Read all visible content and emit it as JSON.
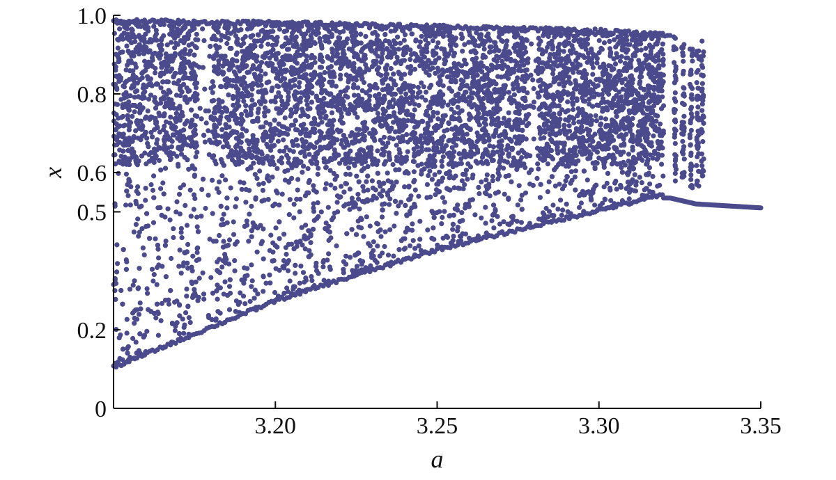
{
  "chart_data": {
    "type": "scatter",
    "title": "",
    "xlabel": "a",
    "ylabel": "x",
    "xlim": [
      3.15,
      3.35
    ],
    "ylim": [
      0,
      1.0
    ],
    "x_ticks": [
      {
        "value": 3.2,
        "label": "3.20"
      },
      {
        "value": 3.25,
        "label": "3.25"
      },
      {
        "value": 3.3,
        "label": "3.30"
      },
      {
        "value": 3.35,
        "label": "3.35"
      }
    ],
    "y_ticks": [
      {
        "value": 0,
        "label": "0"
      },
      {
        "value": 0.2,
        "label": "0.2"
      },
      {
        "value": 0.5,
        "label": "0.5"
      },
      {
        "value": 0.6,
        "label": "0.6"
      },
      {
        "value": 0.8,
        "label": "0.8"
      },
      {
        "value": 1.0,
        "label": "1.0"
      }
    ],
    "grid": false,
    "legend": "none",
    "marker_color": "#4a4a8c",
    "series": [
      {
        "a_range": [
          3.15,
          3.35
        ],
        "description_points": "dense chaotic band of points",
        "lower_envelope": [
          [
            3.15,
            0.1
          ],
          [
            3.2,
            0.27
          ],
          [
            3.25,
            0.4
          ],
          [
            3.3,
            0.5
          ],
          [
            3.32,
            0.54
          ]
        ],
        "upper_envelope": [
          [
            3.15,
            0.99
          ],
          [
            3.2,
            0.985
          ],
          [
            3.25,
            0.975
          ],
          [
            3.3,
            0.965
          ],
          [
            3.32,
            0.955
          ]
        ],
        "fixed_point_branch": [
          [
            3.322,
            0.535
          ],
          [
            3.33,
            0.52
          ],
          [
            3.34,
            0.515
          ],
          [
            3.35,
            0.51
          ]
        ],
        "windows": [
          [
            3.176,
            3.18
          ],
          [
            3.278,
            3.281
          ]
        ]
      }
    ]
  }
}
